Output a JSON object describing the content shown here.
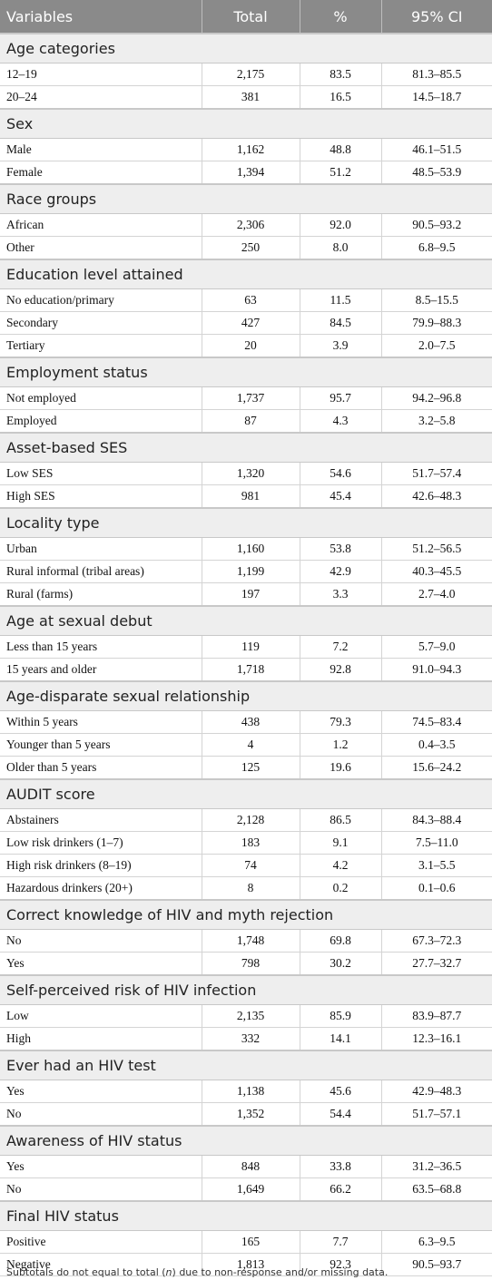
{
  "header": [
    "Variables",
    "Total",
    "%",
    "95% CI"
  ],
  "groups": [
    {
      "title": "Age categories",
      "rows": [
        [
          "12–19",
          "2,175",
          "83.5",
          "81.3–85.5"
        ],
        [
          "20–24",
          "381",
          "16.5",
          "14.5–18.7"
        ]
      ]
    },
    {
      "title": "Sex",
      "rows": [
        [
          "Male",
          "1,162",
          "48.8",
          "46.1–51.5"
        ],
        [
          "Female",
          "1,394",
          "51.2",
          "48.5–53.9"
        ]
      ]
    },
    {
      "title": "Race groups",
      "rows": [
        [
          "African",
          "2,306",
          "92.0",
          "90.5–93.2"
        ],
        [
          "Other",
          "250",
          "8.0",
          "6.8–9.5"
        ]
      ]
    },
    {
      "title": "Education level attained",
      "rows": [
        [
          "No education/primary",
          "63",
          "11.5",
          "8.5–15.5"
        ],
        [
          "Secondary",
          "427",
          "84.5",
          "79.9–88.3"
        ],
        [
          "Tertiary",
          "20",
          "3.9",
          "2.0–7.5"
        ]
      ]
    },
    {
      "title": "Employment status",
      "rows": [
        [
          "Not employed",
          "1,737",
          "95.7",
          "94.2–96.8"
        ],
        [
          "Employed",
          "87",
          "4.3",
          "3.2–5.8"
        ]
      ]
    },
    {
      "title": "Asset-based SES",
      "rows": [
        [
          "Low SES",
          "1,320",
          "54.6",
          "51.7–57.4"
        ],
        [
          "High SES",
          "981",
          "45.4",
          "42.6–48.3"
        ]
      ]
    },
    {
      "title": "Locality type",
      "rows": [
        [
          "Urban",
          "1,160",
          "53.8",
          "51.2–56.5"
        ],
        [
          "Rural informal (tribal areas)",
          "1,199",
          "42.9",
          "40.3–45.5"
        ],
        [
          "Rural (farms)",
          "197",
          "3.3",
          "2.7–4.0"
        ]
      ]
    },
    {
      "title": "Age at sexual debut",
      "rows": [
        [
          "Less than 15 years",
          "119",
          "7.2",
          "5.7–9.0"
        ],
        [
          "15 years and older",
          "1,718",
          "92.8",
          "91.0–94.3"
        ]
      ]
    },
    {
      "title": "Age-disparate sexual relationship",
      "rows": [
        [
          "Within 5 years",
          "438",
          "79.3",
          "74.5–83.4"
        ],
        [
          "Younger than 5 years",
          "4",
          "1.2",
          "0.4–3.5"
        ],
        [
          "Older than 5 years",
          "125",
          "19.6",
          "15.6–24.2"
        ]
      ]
    },
    {
      "title": "AUDIT score",
      "rows": [
        [
          "Abstainers",
          "2,128",
          "86.5",
          "84.3–88.4"
        ],
        [
          "Low risk drinkers (1–7)",
          "183",
          "9.1",
          "7.5–11.0"
        ],
        [
          "High risk drinkers (8–19)",
          "74",
          "4.2",
          "3.1–5.5"
        ],
        [
          "Hazardous drinkers (20+)",
          "8",
          "0.2",
          "0.1–0.6"
        ]
      ]
    },
    {
      "title": "Correct knowledge of HIV and myth rejection",
      "rows": [
        [
          "No",
          "1,748",
          "69.8",
          "67.3–72.3"
        ],
        [
          "Yes",
          "798",
          "30.2",
          "27.7–32.7"
        ]
      ]
    },
    {
      "title": "Self-perceived risk of HIV infection",
      "rows": [
        [
          "Low",
          "2,135",
          "85.9",
          "83.9–87.7"
        ],
        [
          "High",
          "332",
          "14.1",
          "12.3–16.1"
        ]
      ]
    },
    {
      "title": "Ever had an HIV test",
      "rows": [
        [
          "Yes",
          "1,138",
          "45.6",
          "42.9–48.3"
        ],
        [
          "No",
          "1,352",
          "54.4",
          "51.7–57.1"
        ]
      ]
    },
    {
      "title": "Awareness of HIV status",
      "rows": [
        [
          "Yes",
          "848",
          "33.8",
          "31.2–36.5"
        ],
        [
          "No",
          "1,649",
          "66.2",
          "63.5–68.8"
        ]
      ]
    },
    {
      "title": "Final HIV status",
      "rows": [
        [
          "Positive",
          "165",
          "7.7",
          "6.3–9.5"
        ],
        [
          "Negative",
          "1,813",
          "92.3",
          "90.5–93.7"
        ]
      ]
    }
  ],
  "footnote": {
    "before": "Subtotals do not equal to total (",
    "italic": "n",
    "after": ") due to non-response and/or missing data."
  }
}
